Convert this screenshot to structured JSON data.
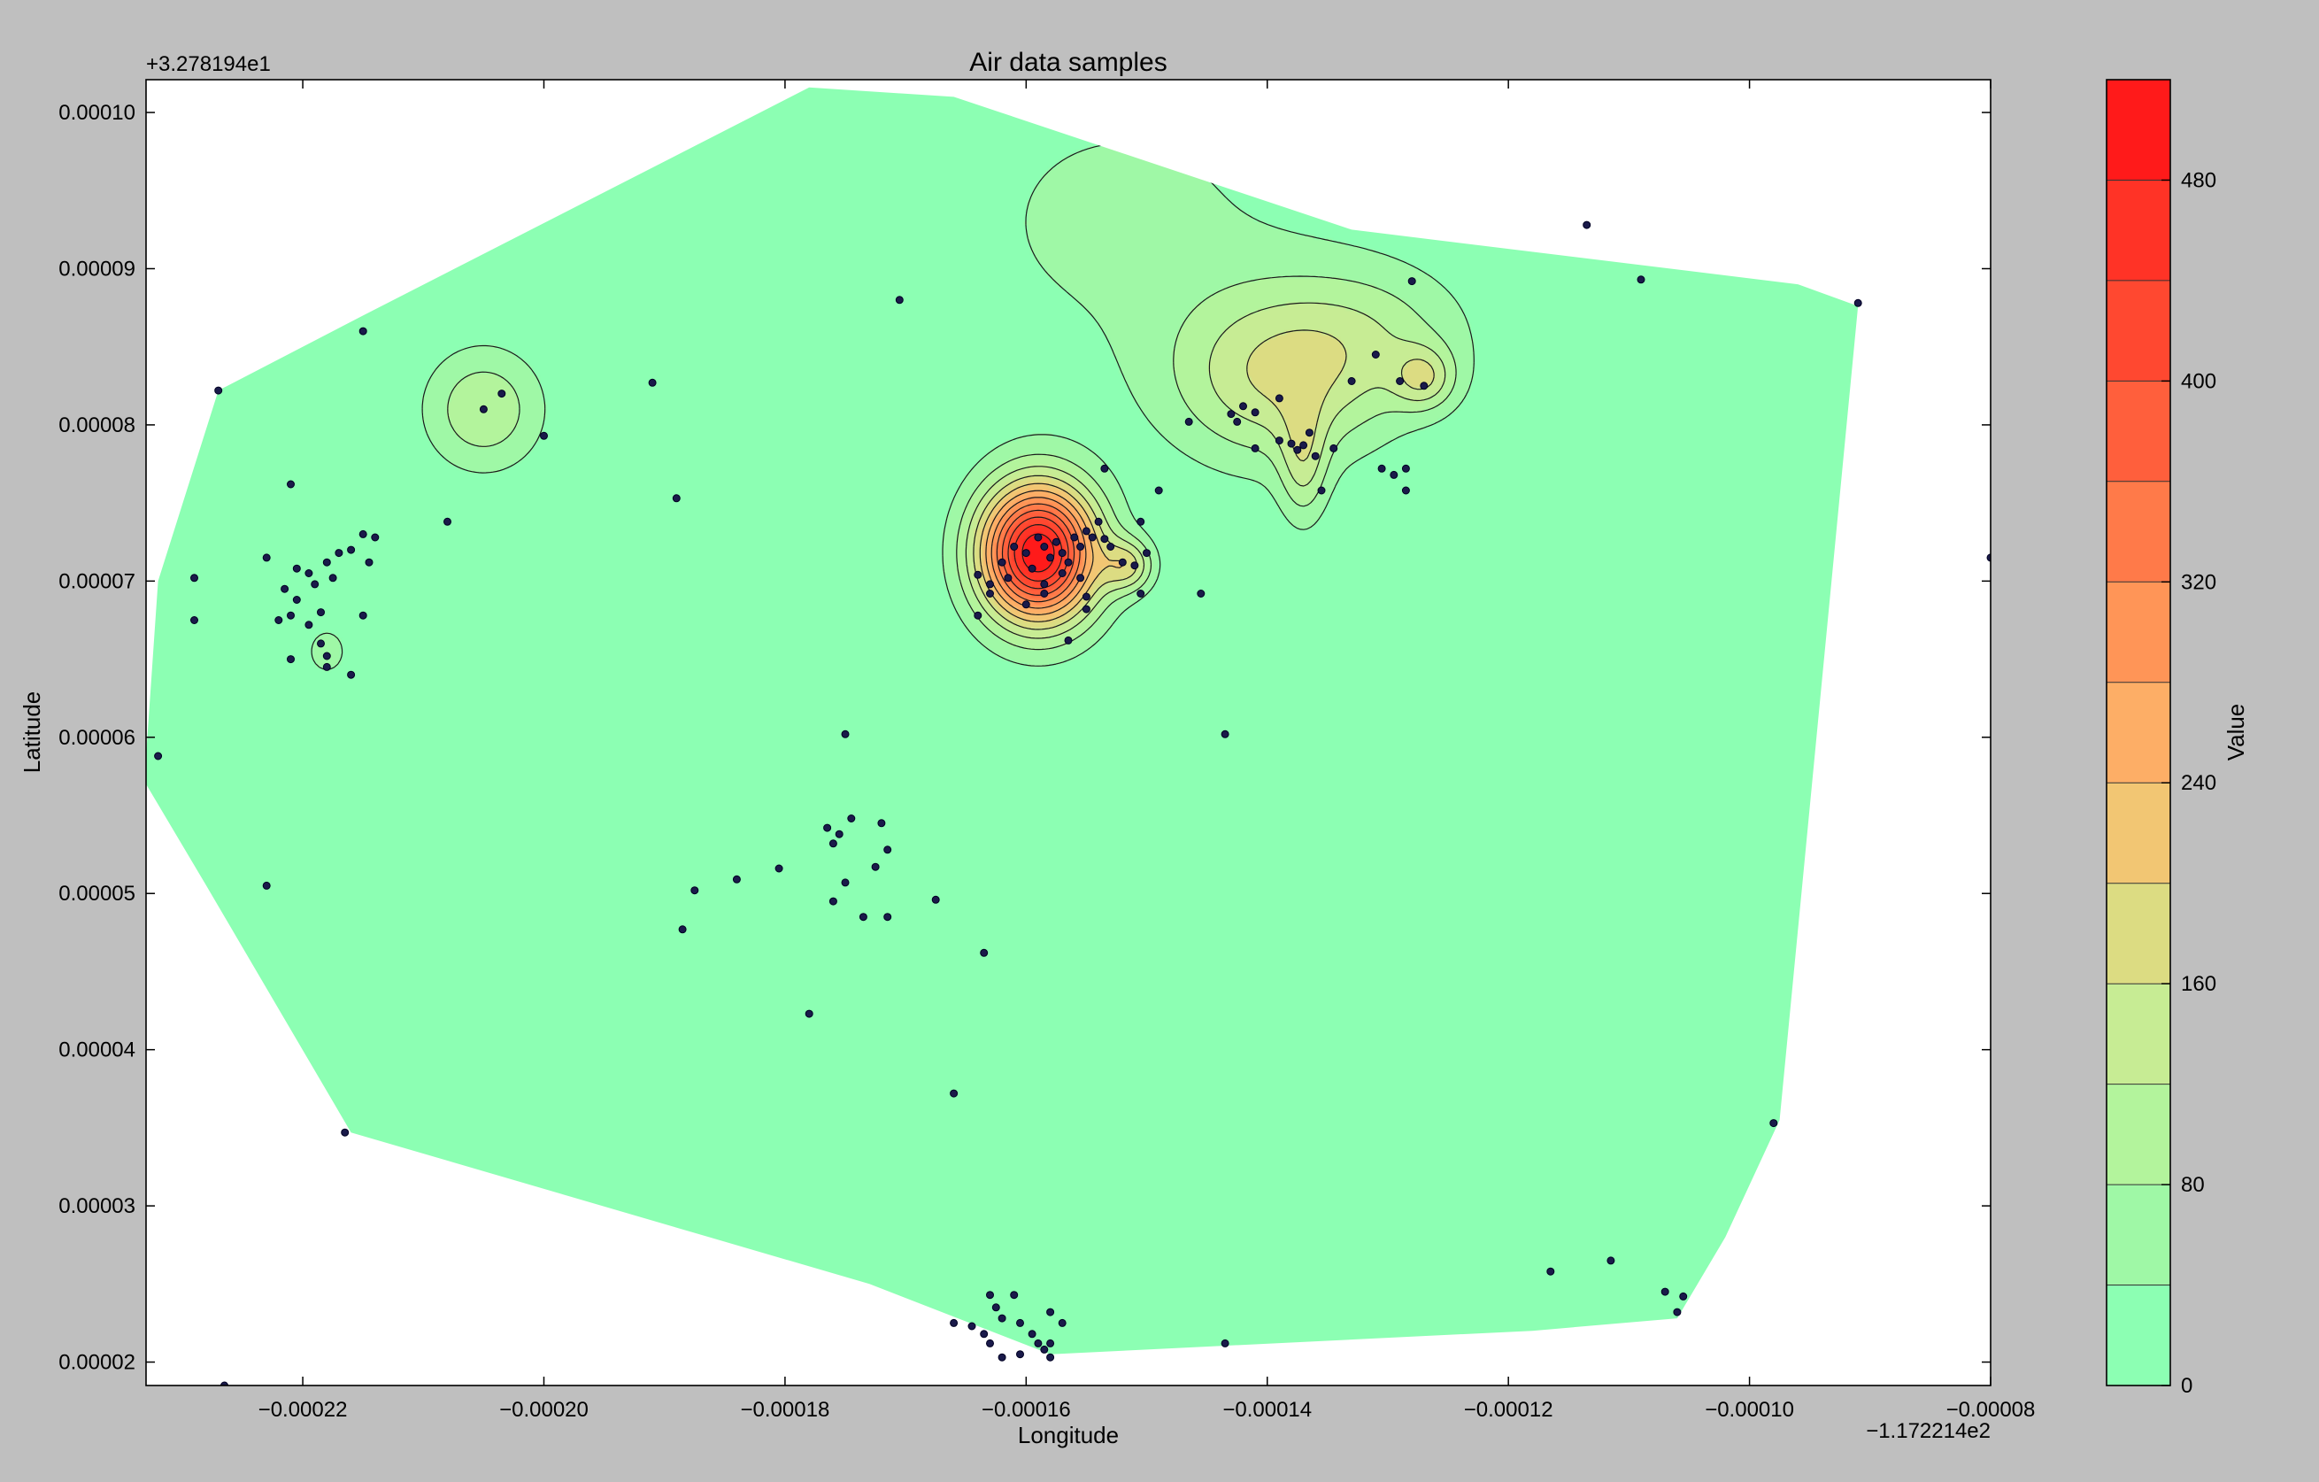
{
  "chart_data": {
    "type": "contour",
    "title": "Air data samples",
    "xlabel": "Longitude",
    "ylabel": "Latitude",
    "x_offset_label": "−1.172214e2",
    "y_offset_label": "+3.278194e1",
    "xlim": [
      -0.000233,
      -8e-05
    ],
    "ylim": [
      1.85e-05,
      0.0001021
    ],
    "x_ticks": [
      -0.00022,
      -0.0002,
      -0.00018,
      -0.00016,
      -0.00014,
      -0.00012,
      -0.0001,
      -8e-05
    ],
    "x_tick_labels": [
      "−0.00022",
      "−0.00020",
      "−0.00018",
      "−0.00016",
      "−0.00014",
      "−0.00012",
      "−0.00010",
      "−0.00008"
    ],
    "y_ticks": [
      2e-05,
      3e-05,
      4e-05,
      5e-05,
      6e-05,
      7e-05,
      8e-05,
      9e-05,
      0.0001
    ],
    "y_tick_labels": [
      "0.00002",
      "0.00003",
      "0.00004",
      "0.00005",
      "0.00006",
      "0.00007",
      "0.00008",
      "0.00009",
      "0.00010"
    ],
    "grid": false,
    "colorbar": {
      "label": "Value",
      "range": [
        0,
        520
      ],
      "level_step": 40,
      "ticks": [
        0,
        80,
        160,
        240,
        320,
        400,
        480
      ],
      "tick_labels": [
        "0",
        "80",
        "160",
        "240",
        "320",
        "400",
        "480"
      ],
      "colors": [
        "#8cffb3",
        "#9ff8a6",
        "#b3f49c",
        "#c7ec94",
        "#dcdc82",
        "#f2c673",
        "#fdae66",
        "#ff9557",
        "#ff7a49",
        "#ff5f3c",
        "#ff4830",
        "#ff3326",
        "#ff1a1a"
      ]
    },
    "hull": [
      [
        -0.000233,
        5.88e-05
      ],
      [
        -0.000232,
        7e-05
      ],
      [
        -0.000227,
        8.22e-05
      ],
      [
        -0.000215,
        8.7e-05
      ],
      [
        -0.000178,
        0.0001016
      ],
      [
        -0.000166,
        0.000101
      ],
      [
        -0.000133,
        9.25e-05
      ],
      [
        -9.6e-05,
        8.9e-05
      ],
      [
        -9.1e-05,
        8.76e-05
      ],
      [
        -9.75e-05,
        3.55e-05
      ],
      [
        -0.000102,
        2.8e-05
      ],
      [
        -0.000106,
        2.28e-05
      ],
      [
        -0.000118,
        2.2e-05
      ],
      [
        -0.000158,
        2.05e-05
      ],
      [
        -0.000173,
        2.5e-05
      ],
      [
        -0.000216,
        3.47e-05
      ],
      [
        -0.000228,
        5.05e-05
      ],
      [
        -0.000233,
        5.7e-05
      ]
    ],
    "sources": [
      {
        "x": -0.000159,
        "y": 7.18e-05,
        "value": 515,
        "sx": 3.5e-06,
        "sy": 3.2e-06
      },
      {
        "x": -0.0001515,
        "y": 7.1e-05,
        "value": 140,
        "sx": 1.5e-06,
        "sy": 1.2e-06
      },
      {
        "x": -0.0001395,
        "y": 8.3e-05,
        "value": 140,
        "sx": 6.2e-06,
        "sy": 4e-06
      },
      {
        "x": -0.000131,
        "y": 8.55e-05,
        "value": 80,
        "sx": 6e-06,
        "sy": 3.5e-06
      },
      {
        "x": -0.000127,
        "y": 8.3e-05,
        "value": 110,
        "sx": 1.8e-06,
        "sy": 1.4e-06
      },
      {
        "x": -0.000137,
        "y": 7.75e-05,
        "value": 100,
        "sx": 1.4e-06,
        "sy": 2.8e-06
      },
      {
        "x": -0.000152,
        "y": 9.3e-05,
        "value": 50,
        "sx": 1.2e-05,
        "sy": 7.5e-06
      },
      {
        "x": -0.000205,
        "y": 8.1e-05,
        "value": 115,
        "sx": 3.5e-06,
        "sy": 2.8e-06
      },
      {
        "x": -0.000218,
        "y": 6.55e-05,
        "value": 70,
        "sx": 1.2e-06,
        "sy": 1.1e-06
      }
    ],
    "points": [
      [
        -0.000232,
        5.88e-05
      ],
      [
        -0.000229,
        7.02e-05
      ],
      [
        -0.000227,
        8.22e-05
      ],
      [
        -0.000215,
        8.6e-05
      ],
      [
        -0.0002265,
        1.85e-05
      ],
      [
        -0.000229,
        6.75e-05
      ],
      [
        -0.000223,
        7.15e-05
      ],
      [
        -0.0002215,
        6.95e-05
      ],
      [
        -0.000221,
        7.62e-05
      ],
      [
        -0.000222,
        6.75e-05
      ],
      [
        -0.0002205,
        7.08e-05
      ],
      [
        -0.0002195,
        7.05e-05
      ],
      [
        -0.000219,
        6.98e-05
      ],
      [
        -0.0002185,
        6.8e-05
      ],
      [
        -0.000218,
        7.12e-05
      ],
      [
        -0.000217,
        7.18e-05
      ],
      [
        -0.0002175,
        7.02e-05
      ],
      [
        -0.000216,
        7.2e-05
      ],
      [
        -0.000215,
        7.3e-05
      ],
      [
        -0.000214,
        7.28e-05
      ],
      [
        -0.0002145,
        7.12e-05
      ],
      [
        -0.0002205,
        6.88e-05
      ],
      [
        -0.0002195,
        6.72e-05
      ],
      [
        -0.000221,
        6.5e-05
      ],
      [
        -0.000218,
        6.45e-05
      ],
      [
        -0.0002185,
        6.6e-05
      ],
      [
        -0.000215,
        6.78e-05
      ],
      [
        -0.000216,
        6.4e-05
      ],
      [
        -0.000221,
        6.78e-05
      ],
      [
        -0.000218,
        6.52e-05
      ],
      [
        -0.000208,
        7.38e-05
      ],
      [
        -0.000205,
        8.1e-05
      ],
      [
        -0.0002035,
        8.2e-05
      ],
      [
        -0.0002,
        7.93e-05
      ],
      [
        -0.000191,
        8.27e-05
      ],
      [
        -0.000189,
        7.53e-05
      ],
      [
        -0.000175,
        6.02e-05
      ],
      [
        -0.0001755,
        5.38e-05
      ],
      [
        -0.000176,
        5.32e-05
      ],
      [
        -0.0001765,
        5.42e-05
      ],
      [
        -0.0001745,
        5.48e-05
      ],
      [
        -0.000172,
        5.45e-05
      ],
      [
        -0.0001715,
        5.28e-05
      ],
      [
        -0.0001725,
        5.17e-05
      ],
      [
        -0.000175,
        5.07e-05
      ],
      [
        -0.0001735,
        4.85e-05
      ],
      [
        -0.0001715,
        4.85e-05
      ],
      [
        -0.000176,
        4.95e-05
      ],
      [
        -0.0001805,
        5.16e-05
      ],
      [
        -0.000184,
        5.09e-05
      ],
      [
        -0.0001875,
        5.02e-05
      ],
      [
        -0.0001885,
        4.77e-05
      ],
      [
        -0.000178,
        4.23e-05
      ],
      [
        -0.0001675,
        4.96e-05
      ],
      [
        -0.0001635,
        4.62e-05
      ],
      [
        -0.000166,
        3.72e-05
      ],
      [
        -0.0002165,
        3.47e-05
      ],
      [
        -0.000223,
        5.05e-05
      ],
      [
        -0.000163,
        2.43e-05
      ],
      [
        -0.000161,
        2.43e-05
      ],
      [
        -0.0001625,
        2.35e-05
      ],
      [
        -0.000162,
        2.28e-05
      ],
      [
        -0.0001605,
        2.25e-05
      ],
      [
        -0.000158,
        2.32e-05
      ],
      [
        -0.000157,
        2.25e-05
      ],
      [
        -0.0001595,
        2.18e-05
      ],
      [
        -0.000159,
        2.12e-05
      ],
      [
        -0.000158,
        2.12e-05
      ],
      [
        -0.0001585,
        2.08e-05
      ],
      [
        -0.0001605,
        2.05e-05
      ],
      [
        -0.000162,
        2.03e-05
      ],
      [
        -0.000163,
        2.12e-05
      ],
      [
        -0.0001635,
        2.18e-05
      ],
      [
        -0.0001645,
        2.23e-05
      ],
      [
        -0.000158,
        2.03e-05
      ],
      [
        -0.0001705,
        8.8e-05
      ],
      [
        -0.000164,
        7.04e-05
      ],
      [
        -0.000163,
        6.98e-05
      ],
      [
        -0.000162,
        7.12e-05
      ],
      [
        -0.0001615,
        7.02e-05
      ],
      [
        -0.000161,
        7.22e-05
      ],
      [
        -0.00016,
        7.18e-05
      ],
      [
        -0.0001595,
        7.08e-05
      ],
      [
        -0.000159,
        7.28e-05
      ],
      [
        -0.0001585,
        7.22e-05
      ],
      [
        -0.000158,
        7.15e-05
      ],
      [
        -0.0001575,
        7.25e-05
      ],
      [
        -0.000157,
        7.18e-05
      ],
      [
        -0.0001565,
        7.12e-05
      ],
      [
        -0.000156,
        7.28e-05
      ],
      [
        -0.0001555,
        7.22e-05
      ],
      [
        -0.000155,
        7.32e-05
      ],
      [
        -0.000157,
        7.05e-05
      ],
      [
        -0.0001585,
        6.98e-05
      ],
      [
        -0.0001555,
        7.02e-05
      ],
      [
        -0.000155,
        6.9e-05
      ],
      [
        -0.0001545,
        7.28e-05
      ],
      [
        -0.000154,
        7.38e-05
      ],
      [
        -0.0001535,
        7.27e-05
      ],
      [
        -0.000153,
        7.22e-05
      ],
      [
        -0.000152,
        7.12e-05
      ],
      [
        -0.000151,
        7.1e-05
      ],
      [
        -0.00015,
        7.18e-05
      ],
      [
        -0.000149,
        7.58e-05
      ],
      [
        -0.0001505,
        7.38e-05
      ],
      [
        -0.0001535,
        7.72e-05
      ],
      [
        -0.000163,
        6.92e-05
      ],
      [
        -0.0001585,
        6.92e-05
      ],
      [
        -0.000155,
        6.82e-05
      ],
      [
        -0.0001565,
        6.62e-05
      ],
      [
        -0.00016,
        6.85e-05
      ],
      [
        -0.0001505,
        6.92e-05
      ],
      [
        -0.0001455,
        6.92e-05
      ],
      [
        -0.0001435,
        6.02e-05
      ],
      [
        -0.000164,
        6.78e-05
      ],
      [
        -0.0001465,
        8.02e-05
      ],
      [
        -0.000143,
        8.07e-05
      ],
      [
        -0.0001425,
        8.02e-05
      ],
      [
        -0.000142,
        8.12e-05
      ],
      [
        -0.000141,
        8.08e-05
      ],
      [
        -0.000139,
        8.17e-05
      ],
      [
        -0.000138,
        7.88e-05
      ],
      [
        -0.0001375,
        7.84e-05
      ],
      [
        -0.000137,
        7.87e-05
      ],
      [
        -0.0001365,
        7.95e-05
      ],
      [
        -0.000136,
        7.8e-05
      ],
      [
        -0.0001355,
        7.58e-05
      ],
      [
        -0.0001345,
        7.85e-05
      ],
      [
        -0.000133,
        8.28e-05
      ],
      [
        -0.000131,
        8.45e-05
      ],
      [
        -0.0001305,
        7.72e-05
      ],
      [
        -0.0001295,
        7.68e-05
      ],
      [
        -0.000129,
        8.28e-05
      ],
      [
        -0.0001285,
        7.72e-05
      ],
      [
        -0.0001285,
        7.58e-05
      ],
      [
        -0.000127,
        8.25e-05
      ],
      [
        -0.000128,
        8.92e-05
      ],
      [
        -0.000141,
        7.85e-05
      ],
      [
        -0.000139,
        7.9e-05
      ],
      [
        -0.0001135,
        9.28e-05
      ],
      [
        -0.000109,
        8.93e-05
      ],
      [
        -9.1e-05,
        8.78e-05
      ],
      [
        -9.8e-05,
        3.53e-05
      ],
      [
        -0.0001115,
        2.65e-05
      ],
      [
        -0.0001165,
        2.58e-05
      ],
      [
        -0.000107,
        2.45e-05
      ],
      [
        -0.0001055,
        2.42e-05
      ],
      [
        -0.000106,
        2.32e-05
      ],
      [
        -0.0001435,
        2.12e-05
      ],
      [
        -8e-05,
        7.15e-05
      ],
      [
        -0.000166,
        2.25e-05
      ]
    ]
  }
}
